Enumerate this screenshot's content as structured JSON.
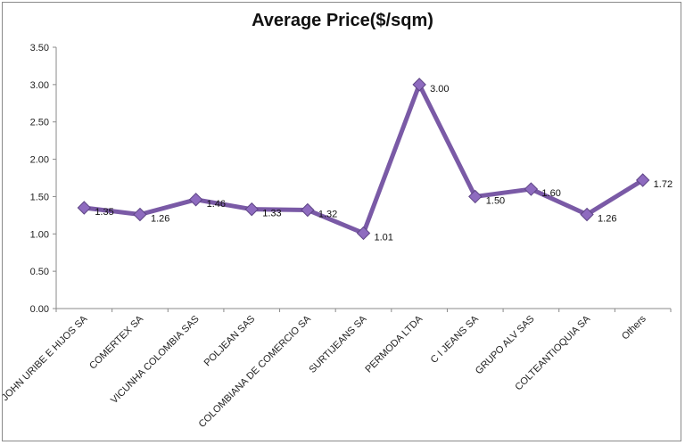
{
  "chart_data": {
    "type": "line",
    "title": "Average Price($/sqm)",
    "xlabel": "",
    "ylabel": "",
    "ylim": [
      0,
      3.5
    ],
    "yticks": [
      "0.00",
      "0.50",
      "1.00",
      "1.50",
      "2.00",
      "2.50",
      "3.00",
      "3.50"
    ],
    "grid": false,
    "legend": "none",
    "categories": [
      "JOHN URIBE E HIJOS SA",
      "COMERTEX SA",
      "VICUNHA COLOMBIA SAS",
      "POLJEAN SAS",
      "COLOMBIANA DE COMERCIO SA",
      "SURTIJEANS SA",
      "PERMODA LTDA",
      "C I JEANS SA",
      "GRUPO ALV SAS",
      "COLTEANTIOQUIA SA",
      "Others"
    ],
    "values": [
      1.35,
      1.26,
      1.46,
      1.33,
      1.32,
      1.01,
      3.0,
      1.5,
      1.6,
      1.26,
      1.72
    ],
    "data_labels": [
      "1.35",
      "1.26",
      "1.46",
      "1.33",
      "1.32",
      "1.01",
      "3.00",
      "1.50",
      "1.60",
      "1.26",
      "1.72"
    ],
    "line_color": "#7A5AA6",
    "marker_color": "#8E6BBF",
    "marker_edge": "#5E4585",
    "axis_color": "#8a8a8a"
  }
}
